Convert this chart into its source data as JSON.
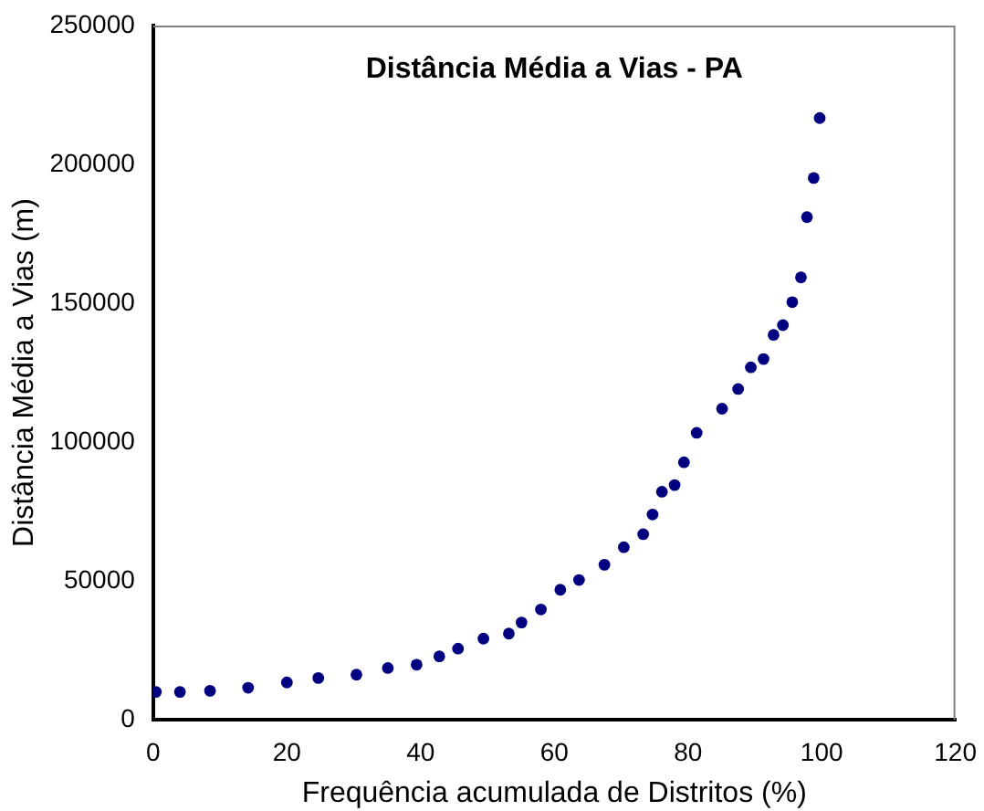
{
  "chart_data": {
    "type": "scatter",
    "title": "Distância Média a Vias - PA",
    "xlabel": "Frequência acumulada de Distritos (%)",
    "ylabel": "Distância Média a Vias (m)",
    "x": [
      0.4,
      4,
      8.5,
      14.2,
      20,
      24.7,
      30.4,
      35.1,
      39.4,
      42.8,
      45.6,
      49.4,
      53.2,
      55.1,
      58,
      60.9,
      63.7,
      67.5,
      70.4,
      73.3,
      74.7,
      76.1,
      78,
      79.4,
      81.3,
      85.1,
      87.5,
      89.4,
      91.3,
      92.8,
      94.2,
      95.6,
      96.9,
      97.8,
      98.8,
      99.7
    ],
    "series": [
      {
        "color": "#000080",
        "values": [
          10000,
          10000,
          10400,
          11500,
          13400,
          15000,
          16200,
          18600,
          19800,
          22800,
          25600,
          29200,
          31000,
          35000,
          39700,
          46800,
          50300,
          55800,
          62100,
          66800,
          73900,
          82100,
          84500,
          92700,
          103300,
          112000,
          119100,
          126900,
          129900,
          138600,
          142100,
          150400,
          159300,
          181000,
          195100,
          216700
        ]
      }
    ],
    "xlim": [
      0,
      120
    ],
    "xticks": [
      0,
      20,
      40,
      60,
      80,
      100,
      120
    ],
    "ylim": [
      0,
      250000
    ],
    "yticks": [
      0,
      50000,
      100000,
      150000,
      200000,
      250000
    ],
    "grid": false,
    "legend": false,
    "marker": "circle"
  }
}
